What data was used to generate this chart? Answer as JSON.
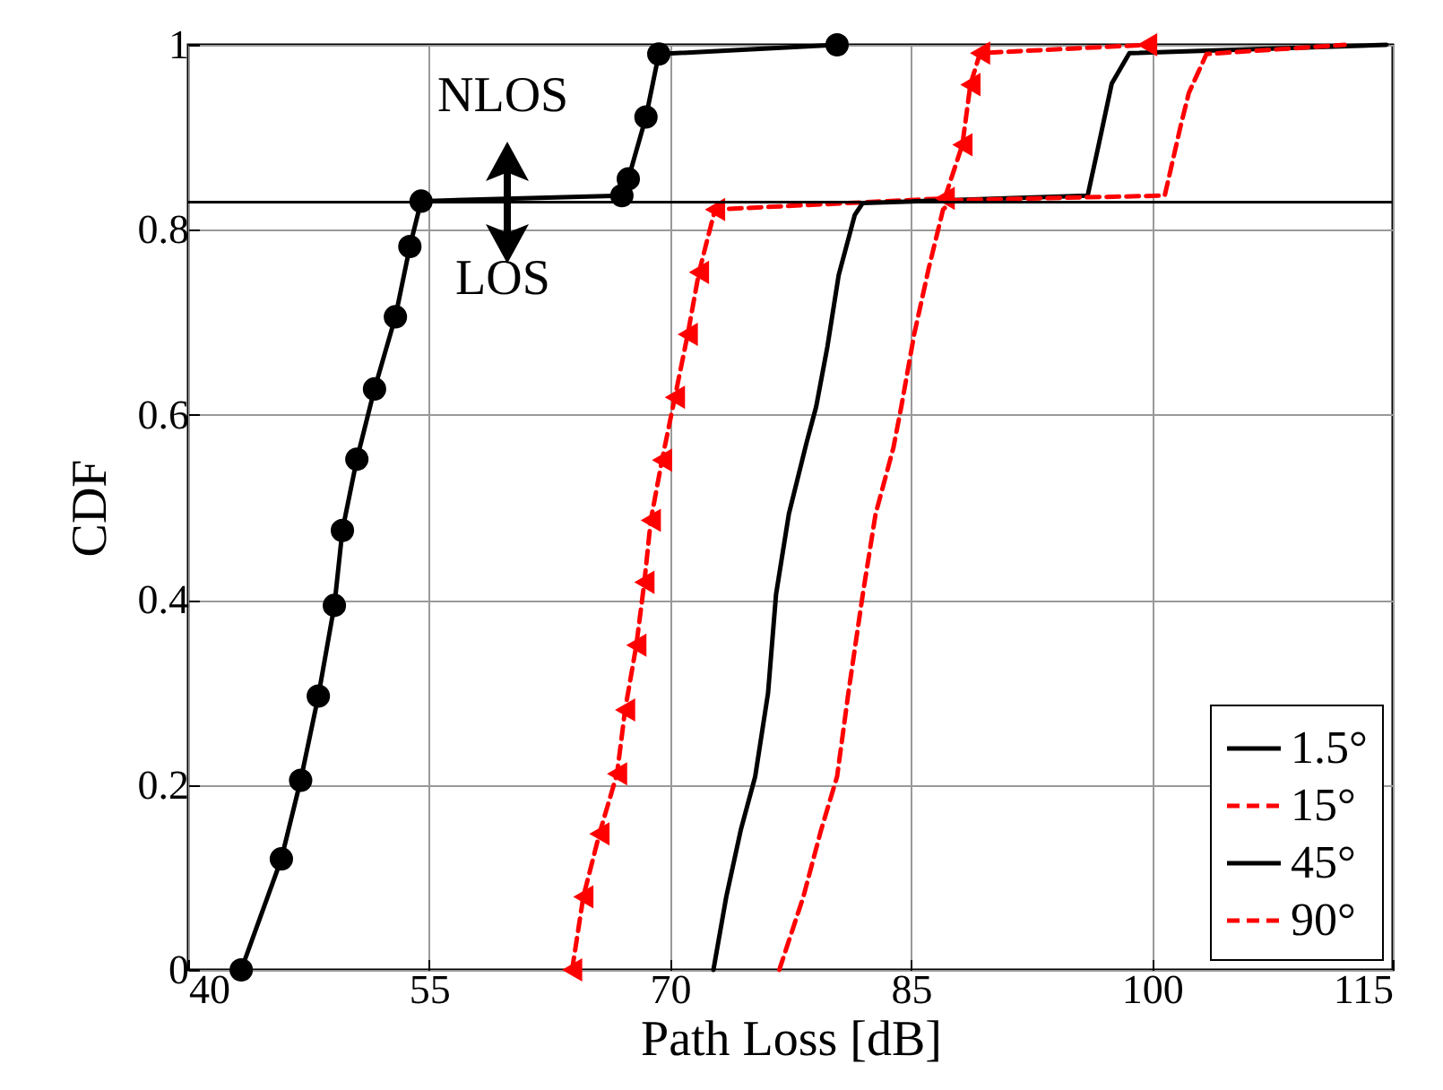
{
  "chart_data": {
    "type": "line",
    "xlabel": "Path Loss [dB]",
    "ylabel": "CDF",
    "xlim": [
      40,
      115
    ],
    "xticks": [
      40,
      55,
      70,
      85,
      100,
      115
    ],
    "ylim": [
      0,
      1
    ],
    "yticks": [
      0,
      0.2,
      0.4,
      0.6,
      0.8,
      1
    ],
    "grid": true,
    "legend": "bottom right",
    "series": [
      {
        "name": "1.5°",
        "color": "#000000",
        "marker": "circle",
        "line_style": "solid",
        "x": [
          43.3,
          45.8,
          47.0,
          48.1,
          49.1,
          49.6,
          50.5,
          51.6,
          52.9,
          53.8,
          54.5,
          67.0,
          67.4,
          68.5,
          69.3,
          80.4
        ],
        "values": [
          0,
          0.12,
          0.205,
          0.296,
          0.394,
          0.475,
          0.552,
          0.628,
          0.706,
          0.782,
          0.831,
          0.837,
          0.855,
          0.922,
          0.99,
          1.0
        ]
      },
      {
        "name": "15°",
        "color": "#ff0000",
        "marker": "triangle",
        "line_style": "dashed",
        "x": [
          63.9,
          64.6,
          65.6,
          66.7,
          67.2,
          67.9,
          68.4,
          68.8,
          69.5,
          70.3,
          71.1,
          71.8,
          72.8,
          87.1,
          88.2,
          88.7,
          89.3,
          99.7
        ],
        "values": [
          0,
          0.079,
          0.147,
          0.212,
          0.281,
          0.351,
          0.419,
          0.486,
          0.551,
          0.619,
          0.687,
          0.754,
          0.822,
          0.834,
          0.892,
          0.957,
          0.991,
          1.0
        ]
      },
      {
        "name": "45°",
        "color": "#000000",
        "marker": "none",
        "line_style": "solid",
        "x": [
          72.7,
          73.5,
          74.4,
          75.3,
          76.1,
          76.6,
          77.4,
          78.5,
          79.1,
          79.8,
          80.5,
          81.5,
          82.0,
          96.0,
          96.7,
          97.5,
          98.6,
          114.6
        ],
        "values": [
          0,
          0.079,
          0.151,
          0.209,
          0.299,
          0.406,
          0.493,
          0.57,
          0.609,
          0.674,
          0.751,
          0.816,
          0.829,
          0.837,
          0.893,
          0.958,
          0.991,
          1.0
        ]
      },
      {
        "name": "90°",
        "color": "#ff0000",
        "marker": "none",
        "line_style": "dashed",
        "x": [
          76.8,
          78.3,
          79.4,
          80.4,
          81.1,
          82.0,
          82.8,
          83.9,
          84.4,
          85.2,
          86.1,
          87.0,
          87.6,
          100.8,
          101.8,
          102.3,
          103.4,
          112.0
        ],
        "values": [
          0,
          0.079,
          0.151,
          0.209,
          0.299,
          0.406,
          0.493,
          0.564,
          0.609,
          0.687,
          0.758,
          0.822,
          0.832,
          0.837,
          0.913,
          0.948,
          0.99,
          1.0
        ]
      }
    ],
    "ref_lines": [
      {
        "axis": "y",
        "value": 0.83,
        "color": "#000000"
      }
    ],
    "annotations": [
      "NLOS",
      "LOS"
    ]
  }
}
